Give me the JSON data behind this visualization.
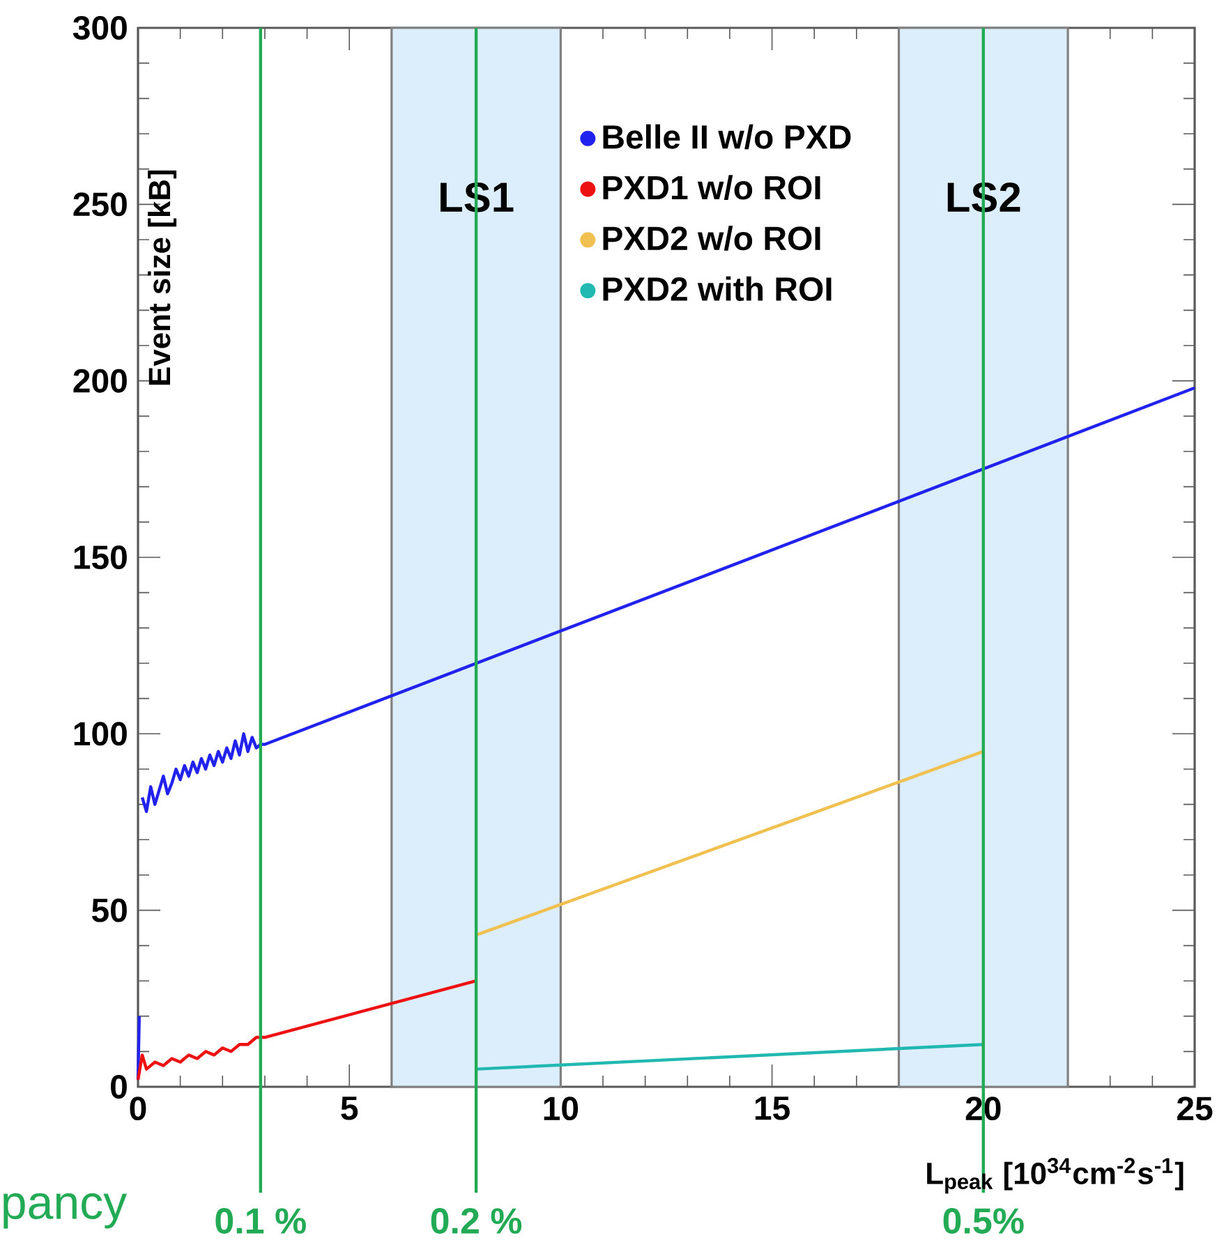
{
  "chart_data": {
    "type": "line",
    "xlabel": "L$_{peak}$ [10$^{34}$cm$^{-2}$s$^{-1}$]",
    "ylabel": "Event size [kB]",
    "xlim": [
      0,
      25
    ],
    "ylim": [
      0,
      300
    ],
    "xticks": [
      0,
      5,
      10,
      15,
      20,
      25
    ],
    "yticks": [
      0,
      50,
      100,
      150,
      200,
      250,
      300
    ],
    "grid": false,
    "legend": "top",
    "series": [
      {
        "name": "Belle II w/o PXD",
        "color": "#2222ee",
        "x": [
          0,
          0.03,
          0.05,
          0.1,
          0.2,
          0.3,
          0.4,
          0.5,
          0.6,
          0.7,
          0.8,
          0.9,
          1.0,
          1.1,
          1.2,
          1.3,
          1.4,
          1.5,
          1.6,
          1.7,
          1.8,
          1.9,
          2.0,
          2.1,
          2.2,
          2.3,
          2.4,
          2.5,
          2.6,
          2.7,
          2.8,
          2.9,
          3.0,
          25
        ],
        "values": [
          2,
          20,
          null,
          82,
          78,
          85,
          80,
          84,
          88,
          83,
          86,
          90,
          87,
          91,
          88,
          92,
          89,
          93,
          90,
          94,
          91,
          95,
          92,
          96,
          93,
          98,
          94,
          100,
          95,
          99,
          96,
          97,
          97,
          198
        ]
      },
      {
        "name": "PXD1 w/o ROI",
        "color": "#ee1111",
        "x": [
          0,
          0.1,
          0.2,
          0.4,
          0.6,
          0.8,
          1.0,
          1.2,
          1.4,
          1.6,
          1.8,
          2.0,
          2.2,
          2.4,
          2.6,
          2.8,
          3.0,
          8
        ],
        "values": [
          2,
          9,
          5,
          7,
          6,
          8,
          7,
          9,
          8,
          10,
          9,
          11,
          10,
          12,
          12,
          14,
          14,
          30
        ]
      },
      {
        "name": "PXD2 w/o ROI",
        "color": "#f0c050",
        "x": [
          8,
          20
        ],
        "values": [
          43,
          95
        ]
      },
      {
        "name": "PXD2 with ROI",
        "color": "#20b8b0",
        "x": [
          8,
          20
        ],
        "values": [
          5,
          12
        ]
      }
    ],
    "bands": [
      {
        "axis": "x",
        "from": 6,
        "to": 10,
        "label": "LS1",
        "color": "#dcedfb"
      },
      {
        "axis": "x",
        "from": 18,
        "to": 22,
        "label": "LS2",
        "color": "#dcedfb"
      }
    ],
    "ref_lines": [
      {
        "axis": "x",
        "value": 2.9,
        "color": "#22aa55"
      },
      {
        "axis": "x",
        "value": 8,
        "color": "#22aa55"
      },
      {
        "axis": "x",
        "value": 20,
        "color": "#22aa55"
      }
    ],
    "annotations": [
      "pancy",
      "0.1 %",
      "0.2 %",
      "0.5%"
    ]
  }
}
